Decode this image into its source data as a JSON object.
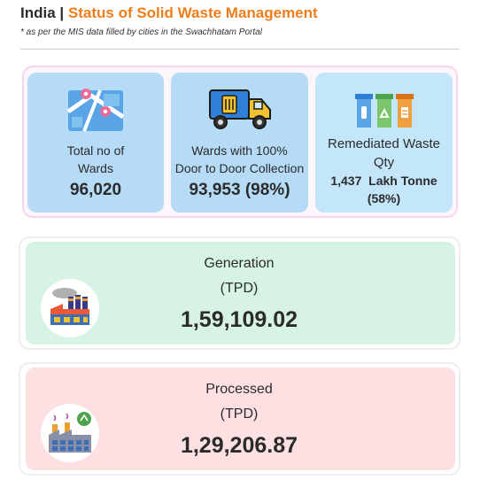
{
  "header": {
    "prefix": "India |",
    "title": "Status of Solid Waste Management",
    "note": "* as per the MIS data filled by cities in the Swachhatam Portal"
  },
  "colors": {
    "title_accent": "#ef7d1a",
    "ward_card": "#b6dbf7",
    "remediated_card": "#c3e6fa",
    "generation_card": "#d6f3e3",
    "processed_card": "#fce0e2"
  },
  "cards": {
    "wards": {
      "icon": "map-icon",
      "label_1": "Total no of",
      "label_2": "Wards",
      "value": "96,020"
    },
    "door_to_door": {
      "icon": "garbage-truck-icon",
      "label_1": "Wards with 100%",
      "label_2": "Door to Door Collection",
      "value": "93,953 (98%)"
    },
    "remediated": {
      "icon": "recycle-bins-icon",
      "label_1": "Remediated Waste",
      "label_2": "Qty",
      "value_1": "1,437  Lakh Tonne",
      "value_2": "(58%)"
    }
  },
  "generation": {
    "icon": "factory-icon",
    "label": "Generation",
    "unit": "(TPD)",
    "value": "1,59,109.02"
  },
  "processed": {
    "icon": "processing-plant-icon",
    "label": "Processed",
    "unit": "(TPD)",
    "value": "1,29,206.87"
  }
}
